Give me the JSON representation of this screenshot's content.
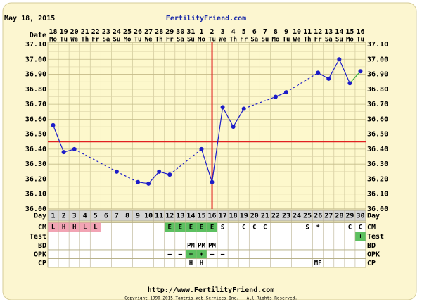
{
  "header": {
    "date": "May 18, 2015",
    "site": "FertilityFriend.com"
  },
  "chart_data": {
    "type": "line",
    "date_label": "Date",
    "day_label": "Day",
    "dates": [
      "18",
      "19",
      "20",
      "21",
      "22",
      "23",
      "24",
      "25",
      "26",
      "27",
      "28",
      "29",
      "30",
      "31",
      "1",
      "2",
      "3",
      "4",
      "5",
      "6",
      "7",
      "8",
      "9",
      "10",
      "11",
      "12",
      "13",
      "14",
      "15",
      "16"
    ],
    "weekdays": [
      "Mo",
      "Tu",
      "We",
      "Th",
      "Fr",
      "Sa",
      "Su",
      "Mo",
      "Tu",
      "We",
      "Th",
      "Fr",
      "Sa",
      "Su",
      "Mo",
      "Tu",
      "We",
      "Th",
      "Fr",
      "Sa",
      "Su",
      "Mo",
      "Tu",
      "We",
      "Th",
      "Fr",
      "Sa",
      "Su",
      "Mo",
      "Tu"
    ],
    "categories": [
      1,
      2,
      3,
      4,
      5,
      6,
      7,
      8,
      9,
      10,
      11,
      12,
      13,
      14,
      15,
      16,
      17,
      18,
      19,
      20,
      21,
      22,
      23,
      24,
      25,
      26,
      27,
      28,
      29,
      30
    ],
    "values": [
      36.56,
      36.38,
      36.4,
      null,
      null,
      null,
      36.25,
      null,
      36.18,
      36.17,
      36.25,
      36.23,
      null,
      null,
      36.4,
      36.18,
      36.68,
      36.55,
      36.67,
      null,
      null,
      36.75,
      36.78,
      null,
      null,
      36.91,
      36.87,
      37.0,
      36.84,
      36.92
    ],
    "color": "#1c1cc8",
    "last_segment_color": "#3cb043",
    "coverline": 36.45,
    "ovulation_day": 16,
    "marker_color": "#e02020",
    "ylim": [
      36.0,
      37.1
    ],
    "yticks": [
      {
        "value": 36.0,
        "label": "36.00"
      },
      {
        "value": 36.1,
        "label": "36.10"
      },
      {
        "value": 36.2,
        "label": "36.20"
      },
      {
        "value": 36.3,
        "label": "36.30"
      },
      {
        "value": 36.4,
        "label": "36.40"
      },
      {
        "value": 36.5,
        "label": "36.50"
      },
      {
        "value": 36.6,
        "label": "36.60"
      },
      {
        "value": 36.7,
        "label": "36.70"
      },
      {
        "value": 36.8,
        "label": "36.80"
      },
      {
        "value": 36.9,
        "label": "36.90"
      },
      {
        "value": 37.0,
        "label": "37.00"
      },
      {
        "value": 37.1,
        "label": "37.10"
      }
    ],
    "grid": true,
    "rows": [
      {
        "name": "CM",
        "values": [
          "L",
          "H",
          "H",
          "L",
          "L",
          null,
          null,
          null,
          null,
          null,
          null,
          "E",
          "E",
          "E",
          "E",
          "E",
          "S",
          null,
          "C",
          "C",
          "C",
          null,
          null,
          null,
          "S",
          "*",
          null,
          null,
          "C",
          "C"
        ],
        "colors": [
          "#f2a4b4",
          "#f2a4b4",
          "#f2a4b4",
          "#f2a4b4",
          "#f2a4b4",
          null,
          null,
          null,
          null,
          null,
          null,
          "#5cc060",
          "#5cc060",
          "#5cc060",
          "#5cc060",
          "#5cc060",
          null,
          null,
          null,
          null,
          null,
          null,
          null,
          null,
          null,
          null,
          null,
          null,
          null,
          null
        ]
      },
      {
        "name": "Test",
        "values": [
          null,
          null,
          null,
          null,
          null,
          null,
          null,
          null,
          null,
          null,
          null,
          null,
          null,
          null,
          null,
          null,
          null,
          null,
          null,
          null,
          null,
          null,
          null,
          null,
          null,
          null,
          null,
          null,
          null,
          "+"
        ],
        "colors": [
          null,
          null,
          null,
          null,
          null,
          null,
          null,
          null,
          null,
          null,
          null,
          null,
          null,
          null,
          null,
          null,
          null,
          null,
          null,
          null,
          null,
          null,
          null,
          null,
          null,
          null,
          null,
          null,
          null,
          "#5cc060"
        ]
      },
      {
        "name": "BD",
        "values": [
          null,
          null,
          null,
          null,
          null,
          null,
          null,
          null,
          null,
          null,
          null,
          null,
          null,
          "PM",
          "PM",
          "PM",
          null,
          null,
          null,
          null,
          null,
          null,
          null,
          null,
          null,
          null,
          null,
          null,
          null,
          null
        ],
        "colors": [
          null,
          null,
          null,
          null,
          null,
          null,
          null,
          null,
          null,
          null,
          null,
          null,
          null,
          null,
          null,
          null,
          null,
          null,
          null,
          null,
          null,
          null,
          null,
          null,
          null,
          null,
          null,
          null,
          null,
          null
        ]
      },
      {
        "name": "OPK",
        "values": [
          null,
          null,
          null,
          null,
          null,
          null,
          null,
          null,
          null,
          null,
          null,
          "–",
          "–",
          "+",
          "+",
          "–",
          "–",
          null,
          null,
          null,
          null,
          null,
          null,
          null,
          null,
          null,
          null,
          null,
          null,
          null
        ],
        "colors": [
          null,
          null,
          null,
          null,
          null,
          null,
          null,
          null,
          null,
          null,
          null,
          null,
          null,
          "#5cc060",
          "#5cc060",
          null,
          null,
          null,
          null,
          null,
          null,
          null,
          null,
          null,
          null,
          null,
          null,
          null,
          null,
          null
        ]
      },
      {
        "name": "CP",
        "values": [
          null,
          null,
          null,
          null,
          null,
          null,
          null,
          null,
          null,
          null,
          null,
          null,
          null,
          "H",
          "H",
          null,
          null,
          null,
          null,
          null,
          null,
          null,
          null,
          null,
          null,
          "MF",
          null,
          null,
          null,
          null
        ],
        "colors": [
          null,
          null,
          null,
          null,
          null,
          null,
          null,
          null,
          null,
          null,
          null,
          null,
          null,
          null,
          null,
          null,
          null,
          null,
          null,
          null,
          null,
          null,
          null,
          null,
          null,
          null,
          null,
          null,
          null,
          null
        ]
      }
    ]
  },
  "footer": {
    "url": "http://www.FertilityFriend.com",
    "copyright": "Copyright 1990-2015 Tamtris Web Services Inc. - All Rights Reserved."
  }
}
